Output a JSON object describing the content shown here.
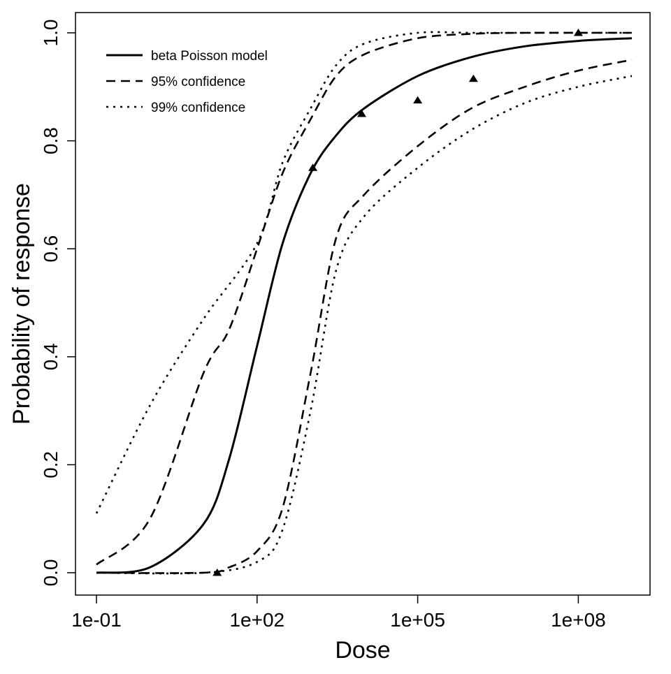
{
  "chart_data": {
    "type": "line",
    "xlabel": "Dose",
    "ylabel": "Probability of response",
    "x_scale": "log10",
    "xlim": [
      0.1,
      1000000000
    ],
    "ylim": [
      0.0,
      1.0
    ],
    "x_ticks": [
      {
        "value": 0.1,
        "label": "1e-01"
      },
      {
        "value": 100,
        "label": "1e+02"
      },
      {
        "value": 100000,
        "label": "1e+05"
      },
      {
        "value": 100000000,
        "label": "1e+08"
      }
    ],
    "y_ticks": [
      {
        "value": 0.0,
        "label": "0.0"
      },
      {
        "value": 0.2,
        "label": "0.2"
      },
      {
        "value": 0.4,
        "label": "0.4"
      },
      {
        "value": 0.6,
        "label": "0.6"
      },
      {
        "value": 0.8,
        "label": "0.8"
      },
      {
        "value": 1.0,
        "label": "1.0"
      }
    ],
    "grid": false,
    "legend_position": "top-left",
    "series": [
      {
        "name": "beta Poisson model",
        "style": "solid",
        "x": [
          0.1,
          1,
          10,
          30,
          100,
          300,
          1000,
          3000,
          10000,
          100000,
          1000000,
          10000000,
          100000000,
          1000000000
        ],
        "y": [
          0.0,
          0.01,
          0.09,
          0.21,
          0.42,
          0.61,
          0.74,
          0.81,
          0.86,
          0.92,
          0.955,
          0.975,
          0.985,
          0.99
        ]
      },
      {
        "name": "95% confidence",
        "style": "dashed",
        "x": [
          0.1,
          1,
          10,
          30,
          100,
          300,
          1000,
          3000,
          10000,
          100000,
          1000000,
          10000000,
          1000000000
        ],
        "y": [
          0.015,
          0.1,
          0.37,
          0.45,
          0.6,
          0.74,
          0.84,
          0.92,
          0.96,
          0.99,
          0.998,
          1.0,
          1.0
        ]
      },
      {
        "name": "95% confidence",
        "style": "dashed",
        "x": [
          0.1,
          10,
          30,
          100,
          300,
          1000,
          3000,
          10000,
          100000,
          1000000,
          10000000,
          100000000,
          1000000000
        ],
        "y": [
          0.0,
          0.0,
          0.01,
          0.04,
          0.12,
          0.37,
          0.62,
          0.7,
          0.79,
          0.86,
          0.9,
          0.93,
          0.95
        ]
      },
      {
        "name": "99% confidence",
        "style": "dotted",
        "x": [
          0.1,
          1,
          10,
          100,
          300,
          1000,
          3000,
          10000,
          100000,
          1000000,
          10000000,
          1000000000
        ],
        "y": [
          0.11,
          0.31,
          0.47,
          0.61,
          0.76,
          0.86,
          0.94,
          0.98,
          1.0,
          1.0,
          1.0,
          1.0
        ]
      },
      {
        "name": "99% confidence",
        "style": "dotted",
        "x": [
          0.1,
          10,
          100,
          300,
          1000,
          3000,
          10000,
          100000,
          1000000,
          10000000,
          100000000,
          1000000000
        ],
        "y": [
          0.0,
          0.0,
          0.02,
          0.08,
          0.3,
          0.56,
          0.66,
          0.75,
          0.82,
          0.87,
          0.9,
          0.92
        ]
      }
    ],
    "observed_points": {
      "x": [
        18,
        1100,
        9000,
        100000,
        1100000,
        100000000
      ],
      "y": [
        0.0,
        0.75,
        0.85,
        0.875,
        0.915,
        1.0
      ]
    },
    "legend": [
      {
        "label": "beta Poisson model",
        "style": "solid"
      },
      {
        "label": "95% confidence",
        "style": "dashed"
      },
      {
        "label": "99% confidence",
        "style": "dotted"
      }
    ]
  }
}
